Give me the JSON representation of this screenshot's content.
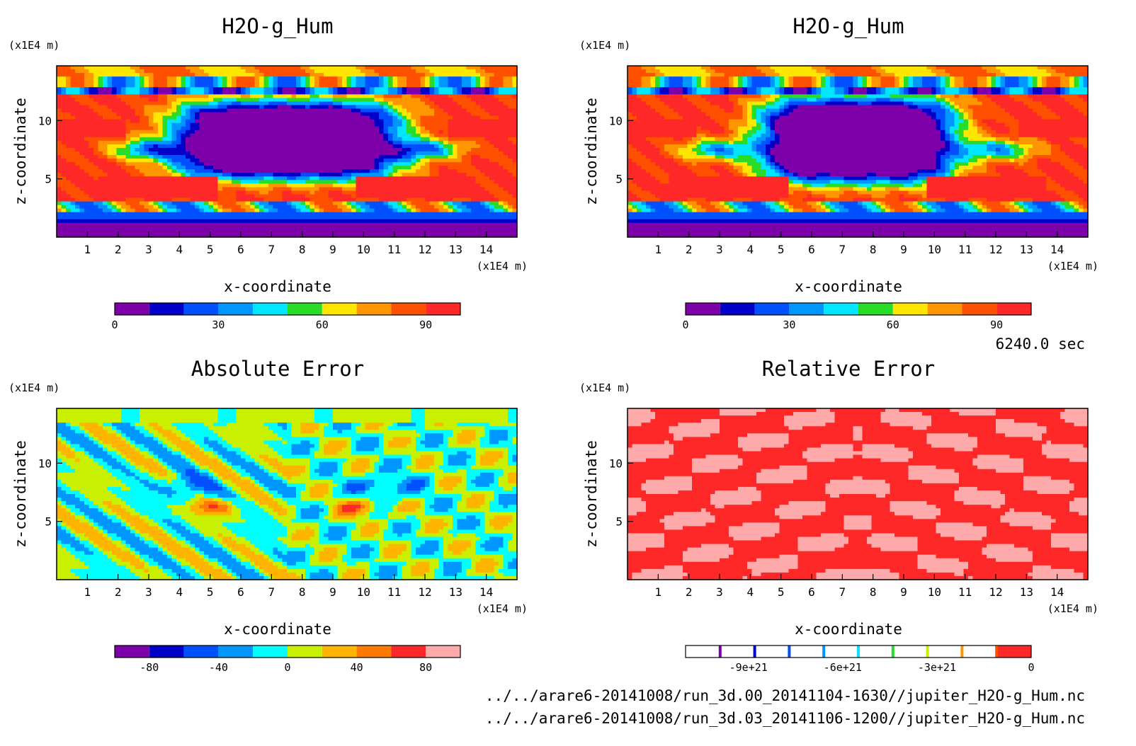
{
  "colors": {
    "rainbow": [
      "#7e00aa",
      "#0000c8",
      "#0050ff",
      "#0096ff",
      "#00e6ff",
      "#28dc28",
      "#ffe600",
      "#ff9600",
      "#ff5000",
      "#ff2828",
      "#ffaaaa"
    ],
    "abs": [
      "#7e00aa",
      "#0000c8",
      "#0050ff",
      "#0096ff",
      "#00ffff",
      "#c8f000",
      "#ffb400",
      "#ff7800",
      "#ff2828",
      "#ffaaaa"
    ],
    "rel_ticks": [
      "#7e00aa",
      "#0000c8",
      "#0050ff",
      "#0096ff",
      "#00e6ff",
      "#28dc28",
      "#c8f000",
      "#ff9600",
      "#ff5000"
    ],
    "rel_fill": "#ff2828",
    "rel_light": "#ffaaaa"
  },
  "chart_data": [
    {
      "type": "heatmap",
      "title": "H2O-g_Hum",
      "xlabel": "x-coordinate",
      "ylabel": "z-coordinate",
      "x_unit": "(x1E4 m)",
      "y_unit": "(x1E4 m)",
      "xlim": [
        0,
        15
      ],
      "ylim": [
        0,
        14.7
      ],
      "xticks": [
        "1",
        "2",
        "3",
        "4",
        "5",
        "6",
        "7",
        "8",
        "9",
        "10",
        "11",
        "12",
        "13",
        "14"
      ],
      "yticks": [
        "5",
        "10"
      ],
      "colorbar": {
        "min": 0,
        "max": 100,
        "levels": 10,
        "ticks": [
          "0",
          "30",
          "60",
          "90"
        ],
        "palette": "rainbow"
      }
    },
    {
      "type": "heatmap",
      "title": "H2O-g_Hum",
      "xlabel": "x-coordinate",
      "ylabel": "z-coordinate",
      "x_unit": "(x1E4 m)",
      "y_unit": "(x1E4 m)",
      "xlim": [
        0,
        15
      ],
      "ylim": [
        0,
        14.7
      ],
      "xticks": [
        "1",
        "2",
        "3",
        "4",
        "5",
        "6",
        "7",
        "8",
        "9",
        "10",
        "11",
        "12",
        "13",
        "14"
      ],
      "yticks": [
        "5",
        "10"
      ],
      "colorbar": {
        "min": 0,
        "max": 100,
        "levels": 10,
        "ticks": [
          "0",
          "30",
          "60",
          "90"
        ],
        "palette": "rainbow"
      }
    },
    {
      "type": "heatmap",
      "title": "Absolute Error",
      "xlabel": "x-coordinate",
      "ylabel": "z-coordinate",
      "x_unit": "(x1E4 m)",
      "y_unit": "(x1E4 m)",
      "xlim": [
        0,
        15
      ],
      "ylim": [
        0,
        14.7
      ],
      "xticks": [
        "1",
        "2",
        "3",
        "4",
        "5",
        "6",
        "7",
        "8",
        "9",
        "10",
        "11",
        "12",
        "13",
        "14"
      ],
      "yticks": [
        "5",
        "10"
      ],
      "colorbar": {
        "min": -100,
        "max": 100,
        "levels": 10,
        "ticks": [
          "-80",
          "-40",
          "0",
          "40",
          "80"
        ],
        "palette": "abs"
      }
    },
    {
      "type": "heatmap",
      "title": "Relative Error",
      "xlabel": "x-coordinate",
      "ylabel": "z-coordinate",
      "x_unit": "(x1E4 m)",
      "y_unit": "(x1E4 m)",
      "xlim": [
        0,
        15
      ],
      "ylim": [
        0,
        14.7
      ],
      "xticks": [
        "1",
        "2",
        "3",
        "4",
        "5",
        "6",
        "7",
        "8",
        "9",
        "10",
        "11",
        "12",
        "13",
        "14"
      ],
      "yticks": [
        "5",
        "10"
      ],
      "colorbar": {
        "min": -1.1e+22,
        "max": 0,
        "levels": 10,
        "ticks": [
          "-9e+21",
          "-6e+21",
          "-3e+21",
          "0"
        ],
        "palette": "relative"
      }
    }
  ],
  "time_label": "6240.0 sec",
  "footer": [
    "../../arare6-20141008/run_3d.00_20141104-1630//jupiter_H2O-g_Hum.nc",
    "../../arare6-20141008/run_3d.03_20141106-1200//jupiter_H2O-g_Hum.nc"
  ]
}
